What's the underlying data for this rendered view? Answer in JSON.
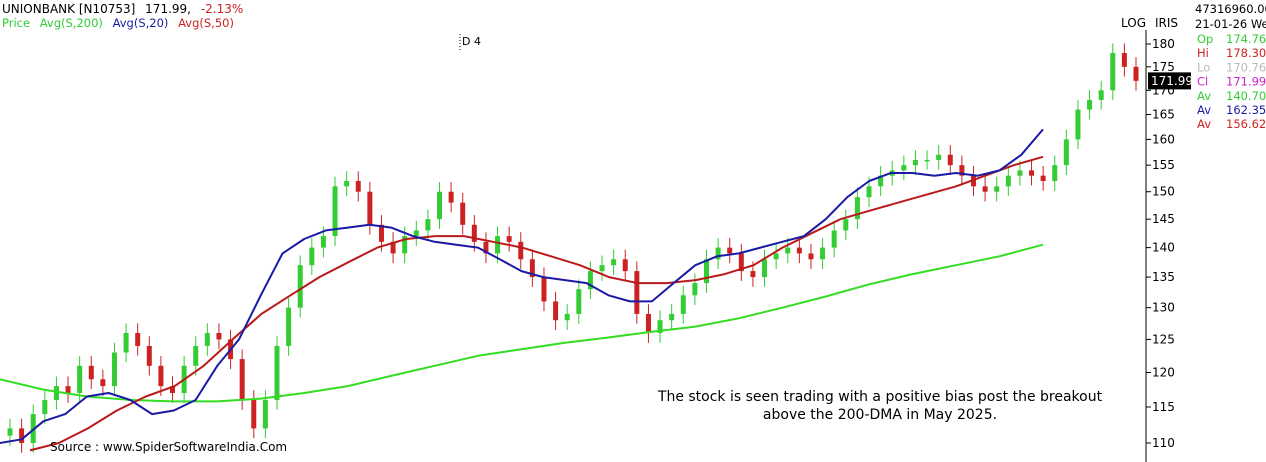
{
  "header": {
    "symbol": "UNIONBANK [N10753]",
    "last_price": "171.99,",
    "change": "-2.13%",
    "legend": [
      {
        "label": "Price",
        "color": "#33cc33"
      },
      {
        "label": "Avg(S,200)",
        "color": "#33cc33"
      },
      {
        "label": "Avg(S,20)",
        "color": "#1a1aa6"
      },
      {
        "label": "Avg(S,50)",
        "color": "#cc2222"
      }
    ]
  },
  "toolbar": {
    "log": "LOG",
    "iris": "IRIS"
  },
  "period_label": "D 4",
  "info_panel": {
    "volume": "47316960.00",
    "date": "21-01-26 We",
    "rows": [
      {
        "label": "Op",
        "value": "174.76",
        "color": "#33cc33"
      },
      {
        "label": "Hi",
        "value": "178.30",
        "color": "#cc2222"
      },
      {
        "label": "Lo",
        "value": "170.76",
        "color": "#bbbbbb"
      },
      {
        "label": "Cl",
        "value": "171.99",
        "color": "#cc22cc"
      },
      {
        "label": "Av",
        "value": "140.70",
        "color": "#33cc33"
      },
      {
        "label": "Av",
        "value": "162.35",
        "color": "#1a1aa6"
      },
      {
        "label": "Av",
        "value": "156.62",
        "color": "#cc2222"
      }
    ]
  },
  "price_tag": "171.99",
  "annotation": [
    "The stock is seen trading with a positive bias post the breakout",
    "above the 200-DMA in May 2025."
  ],
  "source": "Source : www.SpiderSoftwareIndia.Com",
  "colors": {
    "up": "#33cc33",
    "down": "#cc2222",
    "sma200": "#33dd22",
    "sma20": "#1a1aa6",
    "sma50": "#bb1a1a"
  },
  "chart_data": {
    "type": "line",
    "title": "UNIONBANK [N10753]",
    "y_axis_ticks": [
      110,
      115,
      120,
      125,
      130,
      135,
      140,
      145,
      150,
      155,
      160,
      165,
      170,
      175,
      180
    ],
    "ylim": [
      108.5,
      182.5
    ],
    "y_scale": "log",
    "grid": false,
    "legend_position": "top-left",
    "series": [
      {
        "name": "Price",
        "values": [
          112,
          110,
          114,
          116,
          118,
          117,
          121,
          119,
          118,
          123,
          126,
          124,
          121,
          118,
          117,
          121,
          124,
          126,
          125,
          122,
          116,
          112,
          116,
          124,
          130,
          137,
          140,
          142,
          151,
          152,
          150,
          144,
          141,
          139,
          142,
          143,
          145,
          150,
          148,
          144,
          141,
          139,
          142,
          141,
          138,
          135,
          131,
          128,
          129,
          133,
          136,
          137,
          138,
          136,
          129,
          126,
          128,
          129,
          132,
          134,
          138,
          140,
          139,
          136,
          135,
          138,
          139,
          140,
          139,
          138,
          140,
          143,
          145,
          149,
          151,
          153,
          154,
          155,
          156,
          156,
          157,
          155,
          153,
          151,
          150,
          151,
          153,
          154,
          153,
          152,
          155,
          160,
          166,
          168,
          170,
          178,
          175,
          172
        ]
      },
      {
        "name": "Avg(S,200)",
        "values": [
          119,
          117.5,
          116.5,
          116,
          115.8,
          115.8,
          116.2,
          117,
          118,
          119.5,
          121,
          122.5,
          123.5,
          124.5,
          125.3,
          126.2,
          127,
          128.3,
          130,
          131.8,
          133.8,
          135.5,
          137,
          138.5,
          140.5
        ]
      },
      {
        "name": "Avg(S,20)",
        "values": [
          110,
          110.5,
          113,
          114,
          116.5,
          117,
          116,
          114,
          114.5,
          116,
          121,
          125,
          132,
          139,
          141.5,
          143,
          143.5,
          144,
          143.5,
          142,
          141,
          140.5,
          140,
          138,
          136,
          135,
          134.5,
          134,
          132,
          131,
          131,
          134,
          137,
          138.5,
          139,
          140,
          141,
          142,
          145,
          149,
          152,
          153.5,
          153.5,
          153,
          153.5,
          153,
          154,
          157,
          162
        ]
      },
      {
        "name": "Avg(S,50)",
        "values": [
          109,
          110,
          112,
          114.5,
          116.5,
          118,
          121,
          125,
          129,
          132,
          135,
          137.5,
          140,
          141.5,
          142,
          142,
          141,
          140,
          138.5,
          137,
          135,
          134,
          134,
          134.5,
          135.5,
          137,
          140,
          142.5,
          145,
          146.5,
          148,
          149.5,
          151,
          153,
          155,
          156.6
        ]
      }
    ]
  }
}
